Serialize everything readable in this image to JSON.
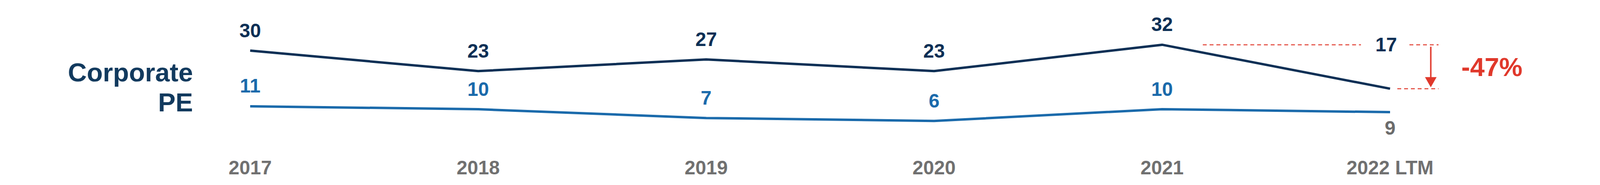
{
  "chart_data": {
    "type": "line",
    "title": "Corporate PE",
    "categories": [
      "2017",
      "2018",
      "2019",
      "2020",
      "2021",
      "2022 LTM"
    ],
    "series": [
      {
        "color": "#0c2f55",
        "values": [
          30,
          23,
          27,
          23,
          32,
          17
        ]
      },
      {
        "color": "#1a6aab",
        "values": [
          11,
          10,
          7,
          6,
          10,
          9
        ]
      }
    ],
    "ylim": [
      0,
      40
    ],
    "yticks": [
      0,
      40
    ],
    "tick_labels": "x",
    "grid": false,
    "data_labels": true,
    "annotation": {
      "text": "-47%",
      "from": 32,
      "to": 17,
      "color": "#e0382b"
    }
  }
}
